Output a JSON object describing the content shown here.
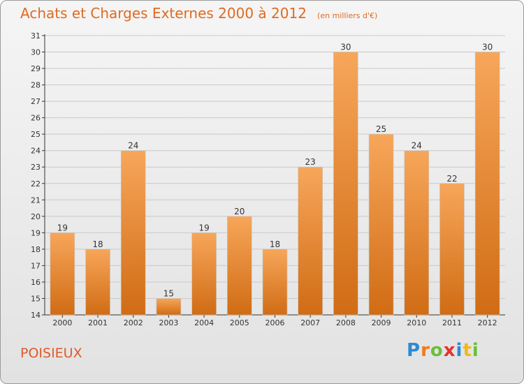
{
  "title": "Achats et Charges Externes 2000 à 2012",
  "subtitle": "(en milliers d'€)",
  "location": "POISIEUX",
  "brand": {
    "text": "Proxiti",
    "letter_colors": [
      "#2a8bd6",
      "#f07a1a",
      "#6bbf3a",
      "#e8322c",
      "#2a8bd6",
      "#f0b81a",
      "#6bbf3a"
    ]
  },
  "colors": {
    "bar_top": "#f7a65a",
    "bar_bottom": "#d06c14",
    "title": "#e06a1f",
    "grid": "#c9c9c9"
  },
  "chart_data": {
    "type": "bar",
    "title": "Achats et Charges Externes 2000 à 2012",
    "subtitle": "(en milliers d'€)",
    "categories": [
      "2000",
      "2001",
      "2002",
      "2003",
      "2004",
      "2005",
      "2006",
      "2007",
      "2008",
      "2009",
      "2010",
      "2011",
      "2012"
    ],
    "values": [
      19,
      18,
      24,
      15,
      19,
      20,
      18,
      23,
      30,
      25,
      24,
      22,
      30
    ],
    "ylim": [
      14,
      31
    ],
    "yticks": [
      14,
      15,
      16,
      17,
      18,
      19,
      20,
      21,
      22,
      23,
      24,
      25,
      26,
      27,
      28,
      29,
      30,
      31
    ],
    "grid": true,
    "data_labels": true
  }
}
